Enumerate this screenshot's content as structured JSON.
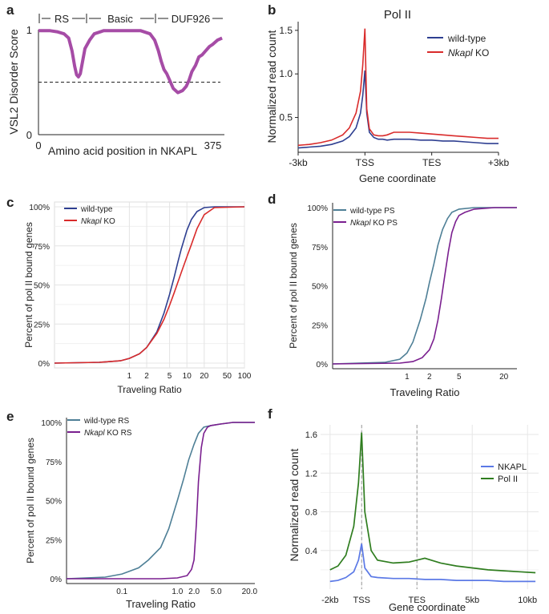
{
  "figure": {
    "panel_letters": [
      "a",
      "b",
      "c",
      "d",
      "e",
      "f"
    ]
  },
  "colors": {
    "purple_disorder": "#a64ca6",
    "blue": "#2e3f91",
    "red": "#d92b2b",
    "teal": "#4e7f96",
    "purple": "#7a1f8f",
    "nkapl_blue": "#5b79e6",
    "green": "#2f7d1f"
  },
  "chart_data": [
    {
      "panel": "a",
      "type": "line",
      "title": "",
      "xlabel": "Amino acid position in NKAPL",
      "ylabel": "VSL2 Disorder Score",
      "x_ticks": [
        "0",
        "375"
      ],
      "y_ticks": [
        "1",
        "0"
      ],
      "domains": [
        "RS",
        "Basic",
        "DUF926"
      ],
      "threshold": 0.5,
      "xlim": [
        0,
        400
      ],
      "ylim": [
        0,
        1
      ],
      "series": [
        {
          "name": "VSL2 disorder score",
          "x": [
            0,
            10,
            25,
            40,
            55,
            65,
            72,
            78,
            82,
            86,
            90,
            95,
            100,
            110,
            120,
            140,
            160,
            180,
            200,
            220,
            240,
            250,
            258,
            264,
            270,
            276,
            282,
            290,
            300,
            310,
            318,
            324,
            330,
            338,
            345,
            352,
            360,
            368,
            375,
            385,
            395
          ],
          "y": [
            0.99,
            0.99,
            0.99,
            0.98,
            0.96,
            0.92,
            0.8,
            0.65,
            0.57,
            0.55,
            0.58,
            0.7,
            0.82,
            0.9,
            0.96,
            0.99,
            0.99,
            0.99,
            0.99,
            0.99,
            0.96,
            0.9,
            0.8,
            0.7,
            0.62,
            0.58,
            0.52,
            0.44,
            0.4,
            0.42,
            0.46,
            0.52,
            0.6,
            0.66,
            0.74,
            0.76,
            0.8,
            0.84,
            0.86,
            0.9,
            0.92
          ]
        }
      ]
    },
    {
      "panel": "b",
      "type": "line",
      "title": "Pol II",
      "xlabel": "Gene coordinate",
      "ylabel": "Normalized read count",
      "x_ticks": [
        "-3kb",
        "TSS",
        "TES",
        "+3kb"
      ],
      "y_ticks": [
        "0.5",
        "1.0",
        "1.5"
      ],
      "ylim": [
        0.1,
        1.6
      ],
      "legend": [
        "wild-type",
        "Nkapl KO"
      ],
      "legend_italic": [
        "",
        "Nkapl"
      ],
      "series": [
        {
          "name": "wild-type",
          "x": [
            -3,
            -2.5,
            -2,
            -1.5,
            -1,
            -0.7,
            -0.4,
            -0.2,
            -0.1,
            0,
            0.08,
            0.2,
            0.4,
            0.6,
            0.8,
            1.0,
            1.3,
            1.6,
            2.0,
            2.5,
            3.0,
            3.5,
            4.0,
            4.5,
            5.0,
            5.5,
            6.0
          ],
          "y": [
            0.15,
            0.16,
            0.17,
            0.19,
            0.23,
            0.28,
            0.38,
            0.55,
            0.75,
            1.04,
            0.55,
            0.33,
            0.27,
            0.25,
            0.25,
            0.24,
            0.25,
            0.25,
            0.25,
            0.24,
            0.24,
            0.23,
            0.23,
            0.22,
            0.21,
            0.2,
            0.2
          ]
        },
        {
          "name": "Nkapl KO",
          "x": [
            -3,
            -2.5,
            -2,
            -1.5,
            -1,
            -0.7,
            -0.4,
            -0.2,
            -0.1,
            0,
            0.08,
            0.2,
            0.4,
            0.6,
            0.8,
            1.0,
            1.3,
            1.6,
            2.0,
            2.5,
            3.0,
            3.5,
            4.0,
            4.5,
            5.0,
            5.5,
            6.0
          ],
          "y": [
            0.18,
            0.19,
            0.21,
            0.24,
            0.3,
            0.38,
            0.55,
            0.8,
            1.1,
            1.52,
            0.6,
            0.37,
            0.3,
            0.29,
            0.29,
            0.3,
            0.33,
            0.33,
            0.33,
            0.32,
            0.31,
            0.3,
            0.29,
            0.28,
            0.27,
            0.26,
            0.26
          ]
        }
      ]
    },
    {
      "panel": "c",
      "type": "line",
      "title": "",
      "xlabel": "Traveling Ratio",
      "ylabel": "Percent of pol II bound genes",
      "x_ticks": [
        "1",
        "2",
        "5",
        "10",
        "20",
        "50",
        "100"
      ],
      "y_ticks": [
        "0%",
        "25%",
        "50%",
        "75%",
        "100%"
      ],
      "xscale": "log",
      "xlim": [
        0.05,
        100
      ],
      "legend": [
        "wild-type",
        "Nkapl KO"
      ],
      "legend_italic": [
        "",
        "Nkapl"
      ],
      "series": [
        {
          "name": "wild-type",
          "x": [
            0.05,
            0.3,
            0.7,
            1.0,
            1.5,
            2,
            3,
            4,
            5,
            6,
            7,
            8,
            10,
            12,
            15,
            20,
            30,
            100
          ],
          "y": [
            0,
            0.5,
            1.5,
            3,
            6,
            10,
            20,
            32,
            44,
            55,
            65,
            73,
            85,
            92,
            97,
            99.5,
            100,
            100
          ]
        },
        {
          "name": "Nkapl KO",
          "x": [
            0.05,
            0.3,
            0.7,
            1.0,
            1.5,
            2,
            3,
            4,
            5,
            6,
            7,
            8,
            10,
            12,
            15,
            20,
            30,
            100
          ],
          "y": [
            0,
            0.5,
            1.5,
            3,
            6,
            10,
            19,
            28,
            37,
            45,
            52,
            58,
            68,
            76,
            86,
            95,
            99.5,
            100
          ]
        }
      ]
    },
    {
      "panel": "d",
      "type": "line",
      "title": "",
      "xlabel": "Traveling Ratio",
      "ylabel": "Percent of pol II bound genes",
      "x_ticks": [
        "1",
        "2",
        "5",
        "20"
      ],
      "y_ticks": [
        "0%",
        "25%",
        "50%",
        "75%",
        "100%"
      ],
      "xscale": "log",
      "xlim": [
        0.1,
        30
      ],
      "legend": [
        "wild-type PS",
        "Nkapl KO PS"
      ],
      "legend_italic": [
        "",
        "Nkapl"
      ],
      "series": [
        {
          "name": "wild-type PS",
          "x": [
            0.1,
            0.5,
            0.8,
            1.0,
            1.2,
            1.5,
            1.8,
            2.0,
            2.3,
            2.6,
            3.0,
            3.5,
            4.0,
            5,
            8,
            15,
            30
          ],
          "y": [
            0,
            1,
            3,
            7,
            14,
            28,
            42,
            52,
            64,
            76,
            86,
            93,
            97,
            99,
            100,
            100,
            100
          ]
        },
        {
          "name": "Nkapl KO PS",
          "x": [
            0.1,
            0.8,
            1.2,
            1.6,
            2.0,
            2.3,
            2.6,
            2.9,
            3.2,
            3.6,
            4.0,
            4.5,
            5,
            6,
            8,
            15,
            30
          ],
          "y": [
            0,
            0.5,
            1.5,
            4,
            9,
            16,
            28,
            42,
            56,
            72,
            84,
            91,
            95,
            97,
            99,
            100,
            100
          ]
        }
      ]
    },
    {
      "panel": "e",
      "type": "line",
      "title": "",
      "xlabel": "Traveling Ratio",
      "ylabel": "Percent of pol II bound genes",
      "x_ticks": [
        "0.1",
        "1.0",
        "2.0",
        "5.0",
        "20.0"
      ],
      "y_ticks": [
        "0%",
        "25%",
        "50%",
        "75%",
        "100%"
      ],
      "xscale": "log",
      "xlim": [
        0.01,
        25
      ],
      "legend": [
        "wild-type RS",
        "Nkapl KO RS"
      ],
      "legend_italic": [
        "",
        "Nkapl"
      ],
      "series": [
        {
          "name": "wild-type RS",
          "x": [
            0.01,
            0.05,
            0.1,
            0.2,
            0.3,
            0.5,
            0.7,
            1.0,
            1.3,
            1.6,
            2.0,
            2.4,
            3.0,
            4,
            6,
            10,
            25
          ],
          "y": [
            0,
            1,
            3,
            7,
            12,
            20,
            32,
            50,
            64,
            76,
            86,
            93,
            97,
            98,
            99,
            100,
            100
          ]
        },
        {
          "name": "Nkapl KO RS",
          "x": [
            0.01,
            0.5,
            1.0,
            1.5,
            1.8,
            2.0,
            2.2,
            2.4,
            2.7,
            3.0,
            3.5,
            4,
            6,
            10,
            25
          ],
          "y": [
            0,
            0,
            0.5,
            2,
            6,
            12,
            35,
            62,
            84,
            93,
            97,
            98,
            99,
            100,
            100
          ]
        }
      ]
    },
    {
      "panel": "f",
      "type": "line",
      "title": "",
      "xlabel": "Gene coordinate",
      "ylabel": "Normalized read count",
      "x_ticks": [
        "-2kb",
        "TSS",
        "TES",
        "5kb",
        "10kb"
      ],
      "y_ticks": [
        "0.4",
        "0.8",
        "1.2",
        "1.6"
      ],
      "ylim": [
        0,
        1.7
      ],
      "legend": [
        "NKAPL",
        "Pol II"
      ],
      "series": [
        {
          "name": "NKAPL",
          "x": [
            -2,
            -1.5,
            -1,
            -0.5,
            -0.2,
            0,
            0.2,
            0.6,
            1,
            2,
            3,
            4,
            5,
            6,
            7,
            8,
            9,
            10,
            11
          ],
          "y": [
            0.08,
            0.09,
            0.12,
            0.18,
            0.3,
            0.47,
            0.22,
            0.13,
            0.12,
            0.11,
            0.11,
            0.1,
            0.1,
            0.09,
            0.09,
            0.09,
            0.08,
            0.08,
            0.08
          ]
        },
        {
          "name": "Pol II",
          "x": [
            -2,
            -1.5,
            -1,
            -0.5,
            -0.2,
            0,
            0.2,
            0.6,
            1,
            2,
            3,
            3.5,
            4,
            5,
            6,
            7,
            8,
            9,
            10,
            11
          ],
          "y": [
            0.2,
            0.24,
            0.35,
            0.65,
            1.1,
            1.62,
            0.8,
            0.4,
            0.3,
            0.27,
            0.28,
            0.3,
            0.32,
            0.27,
            0.24,
            0.22,
            0.2,
            0.19,
            0.18,
            0.17
          ]
        }
      ]
    }
  ]
}
